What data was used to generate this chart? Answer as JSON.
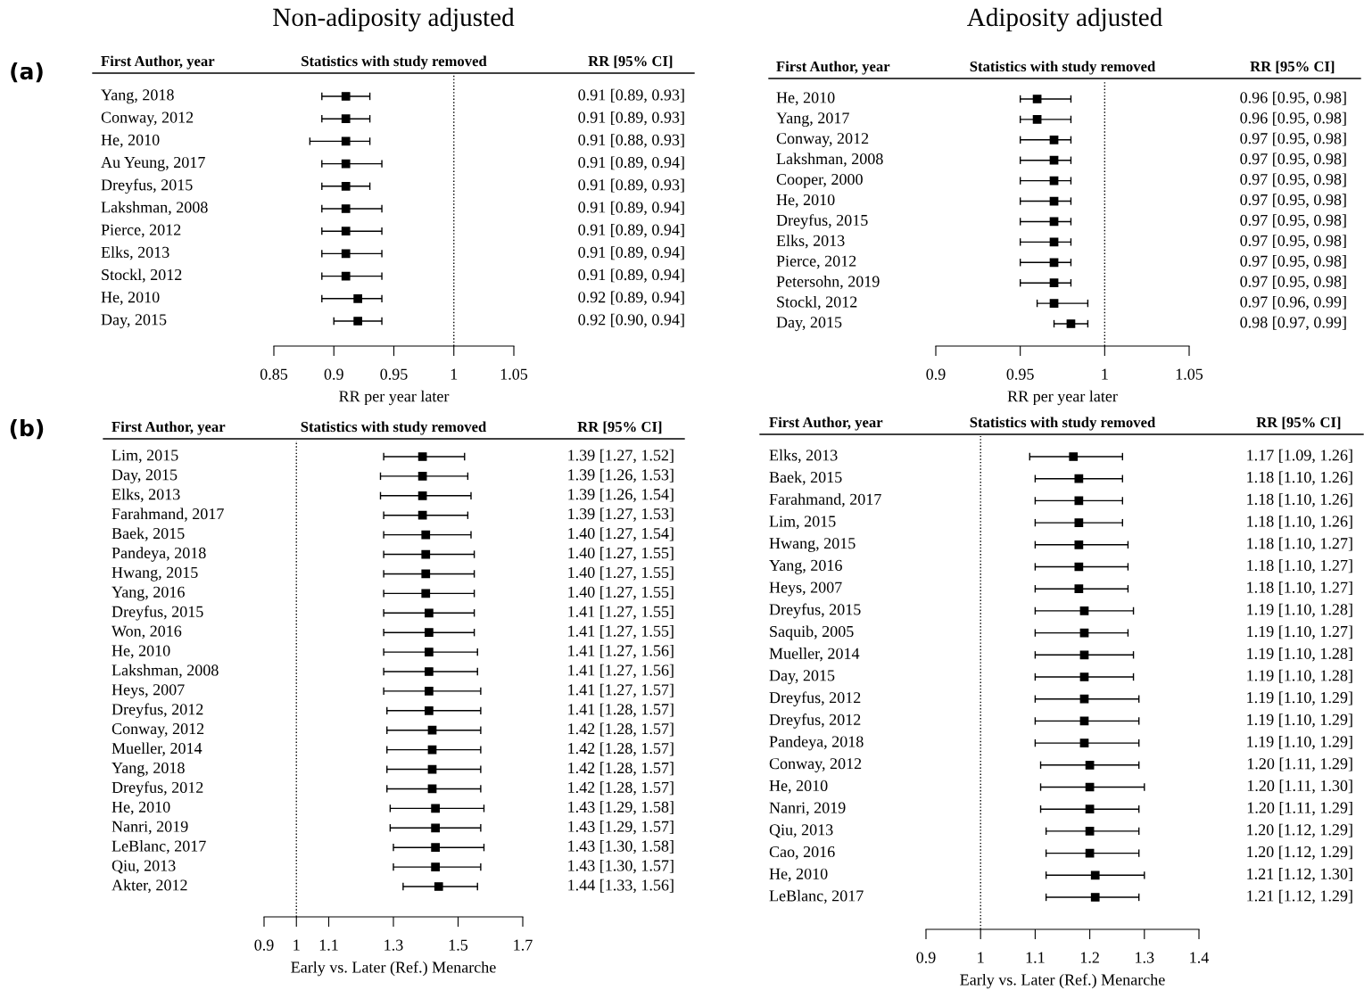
{
  "chart_data": [
    {
      "type": "scatter",
      "orientation": "horizontal",
      "title": "Non-adiposity adjusted",
      "xlabel": "RR per year later",
      "marker": "square",
      "annotations": [
        "First Author, year",
        "Statistics with study removed",
        "RR [95% CI]",
        "(a)"
      ],
      "categories": [
        "Yang, 2018",
        "Conway, 2012",
        "He, 2010",
        "Au Yeung, 2017",
        "Dreyfus, 2015",
        "Lakshman, 2008",
        "Pierce, 2012",
        "Elks, 2013",
        "Stockl, 2012",
        "He, 2010",
        "Day, 2015"
      ],
      "values": [
        0.91,
        0.91,
        0.91,
        0.91,
        0.91,
        0.91,
        0.91,
        0.91,
        0.91,
        0.92,
        0.92
      ],
      "errors": [
        [
          0.89,
          0.93
        ],
        [
          0.89,
          0.93
        ],
        [
          0.88,
          0.93
        ],
        [
          0.89,
          0.94
        ],
        [
          0.89,
          0.93
        ],
        [
          0.89,
          0.94
        ],
        [
          0.89,
          0.94
        ],
        [
          0.89,
          0.94
        ],
        [
          0.89,
          0.94
        ],
        [
          0.89,
          0.94
        ],
        [
          0.9,
          0.94
        ]
      ],
      "value_labels": [
        "0.91 [0.89, 0.93]",
        "0.91 [0.89, 0.93]",
        "0.91 [0.88, 0.93]",
        "0.91 [0.89, 0.94]",
        "0.91 [0.89, 0.93]",
        "0.91 [0.89, 0.94]",
        "0.91 [0.89, 0.94]",
        "0.91 [0.89, 0.94]",
        "0.91 [0.89, 0.94]",
        "0.92 [0.89, 0.94]",
        "0.92 [0.90, 0.94]"
      ],
      "color": "#000000",
      "xlim": [
        0.85,
        1.05
      ],
      "xticks": [
        0.85,
        0.9,
        0.95,
        1,
        1.05
      ],
      "ref_lines": [
        {
          "axis": "x",
          "value": 1,
          "line_style": "dotted"
        }
      ]
    },
    {
      "type": "scatter",
      "orientation": "horizontal",
      "title": "Adiposity adjusted",
      "xlabel": "RR per year later",
      "marker": "square",
      "annotations": [
        "First Author, year",
        "Statistics with study removed",
        "RR [95% CI]"
      ],
      "categories": [
        "He, 2010",
        "Yang, 2017",
        "Conway, 2012",
        "Lakshman, 2008",
        "Cooper, 2000",
        "He, 2010",
        "Dreyfus, 2015",
        "Elks, 2013",
        "Pierce, 2012",
        "Petersohn, 2019",
        "Stockl, 2012",
        "Day, 2015"
      ],
      "values": [
        0.96,
        0.96,
        0.97,
        0.97,
        0.97,
        0.97,
        0.97,
        0.97,
        0.97,
        0.97,
        0.97,
        0.98
      ],
      "errors": [
        [
          0.95,
          0.98
        ],
        [
          0.95,
          0.98
        ],
        [
          0.95,
          0.98
        ],
        [
          0.95,
          0.98
        ],
        [
          0.95,
          0.98
        ],
        [
          0.95,
          0.98
        ],
        [
          0.95,
          0.98
        ],
        [
          0.95,
          0.98
        ],
        [
          0.95,
          0.98
        ],
        [
          0.95,
          0.98
        ],
        [
          0.96,
          0.99
        ],
        [
          0.97,
          0.99
        ]
      ],
      "value_labels": [
        "0.96 [0.95, 0.98]",
        "0.96 [0.95, 0.98]",
        "0.97 [0.95, 0.98]",
        "0.97 [0.95, 0.98]",
        "0.97 [0.95, 0.98]",
        "0.97 [0.95, 0.98]",
        "0.97 [0.95, 0.98]",
        "0.97 [0.95, 0.98]",
        "0.97 [0.95, 0.98]",
        "0.97 [0.95, 0.98]",
        "0.97 [0.96, 0.99]",
        "0.98 [0.97, 0.99]"
      ],
      "color": "#000000",
      "xlim": [
        0.9,
        1.05
      ],
      "xticks": [
        0.9,
        0.95,
        1,
        1.05
      ],
      "ref_lines": [
        {
          "axis": "x",
          "value": 1,
          "line_style": "dotted"
        }
      ]
    },
    {
      "type": "scatter",
      "orientation": "horizontal",
      "xlabel": "Early vs. Later (Ref.) Menarche",
      "marker": "square",
      "annotations": [
        "First Author, year",
        "Statistics with study removed",
        "RR [95% CI]",
        "(b)"
      ],
      "categories": [
        "Lim, 2015",
        "Day, 2015",
        "Elks, 2013",
        "Farahmand, 2017",
        "Baek, 2015",
        "Pandeya, 2018",
        "Hwang, 2015",
        "Yang, 2016",
        "Dreyfus, 2015",
        "Won, 2016",
        "He, 2010",
        "Lakshman, 2008",
        "Heys, 2007",
        "Dreyfus, 2012",
        "Conway, 2012",
        "Mueller, 2014",
        "Yang, 2018",
        "Dreyfus, 2012",
        "He, 2010",
        "Nanri, 2019",
        "LeBlanc, 2017",
        "Qiu, 2013",
        "Akter, 2012"
      ],
      "values": [
        1.39,
        1.39,
        1.39,
        1.39,
        1.4,
        1.4,
        1.4,
        1.4,
        1.41,
        1.41,
        1.41,
        1.41,
        1.41,
        1.41,
        1.42,
        1.42,
        1.42,
        1.42,
        1.43,
        1.43,
        1.43,
        1.43,
        1.44
      ],
      "errors": [
        [
          1.27,
          1.52
        ],
        [
          1.26,
          1.53
        ],
        [
          1.26,
          1.54
        ],
        [
          1.27,
          1.53
        ],
        [
          1.27,
          1.54
        ],
        [
          1.27,
          1.55
        ],
        [
          1.27,
          1.55
        ],
        [
          1.27,
          1.55
        ],
        [
          1.27,
          1.55
        ],
        [
          1.27,
          1.55
        ],
        [
          1.27,
          1.56
        ],
        [
          1.27,
          1.56
        ],
        [
          1.27,
          1.57
        ],
        [
          1.28,
          1.57
        ],
        [
          1.28,
          1.57
        ],
        [
          1.28,
          1.57
        ],
        [
          1.28,
          1.57
        ],
        [
          1.28,
          1.57
        ],
        [
          1.29,
          1.58
        ],
        [
          1.29,
          1.57
        ],
        [
          1.3,
          1.58
        ],
        [
          1.3,
          1.57
        ],
        [
          1.33,
          1.56
        ]
      ],
      "value_labels": [
        "1.39 [1.27, 1.52]",
        "1.39 [1.26, 1.53]",
        "1.39 [1.26, 1.54]",
        "1.39 [1.27, 1.53]",
        "1.40 [1.27, 1.54]",
        "1.40 [1.27, 1.55]",
        "1.40 [1.27, 1.55]",
        "1.40 [1.27, 1.55]",
        "1.41 [1.27, 1.55]",
        "1.41 [1.27, 1.55]",
        "1.41 [1.27, 1.56]",
        "1.41 [1.27, 1.56]",
        "1.41 [1.27, 1.57]",
        "1.41 [1.28, 1.57]",
        "1.42 [1.28, 1.57]",
        "1.42 [1.28, 1.57]",
        "1.42 [1.28, 1.57]",
        "1.42 [1.28, 1.57]",
        "1.43 [1.29, 1.58]",
        "1.43 [1.29, 1.57]",
        "1.43 [1.30, 1.58]",
        "1.43 [1.30, 1.57]",
        "1.44 [1.33, 1.56]"
      ],
      "color": "#000000",
      "xlim": [
        0.9,
        1.7
      ],
      "xticks": [
        0.9,
        1,
        1.1,
        1.3,
        1.5,
        1.7
      ],
      "ref_lines": [
        {
          "axis": "x",
          "value": 1,
          "line_style": "dotted"
        }
      ]
    },
    {
      "type": "scatter",
      "orientation": "horizontal",
      "xlabel": "Early vs. Later (Ref.) Menarche",
      "marker": "square",
      "annotations": [
        "First Author, year",
        "Statistics with study removed",
        "RR [95% CI]"
      ],
      "categories": [
        "Elks, 2013",
        "Baek, 2015",
        "Farahmand, 2017",
        "Lim, 2015",
        "Hwang, 2015",
        "Yang, 2016",
        "Heys, 2007",
        "Dreyfus, 2015",
        "Saquib, 2005",
        "Mueller, 2014",
        "Day, 2015",
        "Dreyfus, 2012",
        "Dreyfus, 2012",
        "Pandeya, 2018",
        "Conway, 2012",
        "He, 2010",
        "Nanri, 2019",
        "Qiu, 2013",
        "Cao, 2016",
        "He, 2010",
        "LeBlanc, 2017"
      ],
      "values": [
        1.17,
        1.18,
        1.18,
        1.18,
        1.18,
        1.18,
        1.18,
        1.19,
        1.19,
        1.19,
        1.19,
        1.19,
        1.19,
        1.19,
        1.2,
        1.2,
        1.2,
        1.2,
        1.2,
        1.21,
        1.21
      ],
      "errors": [
        [
          1.09,
          1.26
        ],
        [
          1.1,
          1.26
        ],
        [
          1.1,
          1.26
        ],
        [
          1.1,
          1.26
        ],
        [
          1.1,
          1.27
        ],
        [
          1.1,
          1.27
        ],
        [
          1.1,
          1.27
        ],
        [
          1.1,
          1.28
        ],
        [
          1.1,
          1.27
        ],
        [
          1.1,
          1.28
        ],
        [
          1.1,
          1.28
        ],
        [
          1.1,
          1.29
        ],
        [
          1.1,
          1.29
        ],
        [
          1.1,
          1.29
        ],
        [
          1.11,
          1.29
        ],
        [
          1.11,
          1.3
        ],
        [
          1.11,
          1.29
        ],
        [
          1.12,
          1.29
        ],
        [
          1.12,
          1.29
        ],
        [
          1.12,
          1.3
        ],
        [
          1.12,
          1.29
        ]
      ],
      "value_labels": [
        "1.17 [1.09, 1.26]",
        "1.18 [1.10, 1.26]",
        "1.18 [1.10, 1.26]",
        "1.18 [1.10, 1.26]",
        "1.18 [1.10, 1.27]",
        "1.18 [1.10, 1.27]",
        "1.18 [1.10, 1.27]",
        "1.19 [1.10, 1.28]",
        "1.19 [1.10, 1.27]",
        "1.19 [1.10, 1.28]",
        "1.19 [1.10, 1.28]",
        "1.19 [1.10, 1.29]",
        "1.19 [1.10, 1.29]",
        "1.19 [1.10, 1.29]",
        "1.20 [1.11, 1.29]",
        "1.20 [1.11, 1.30]",
        "1.20 [1.11, 1.29]",
        "1.20 [1.12, 1.29]",
        "1.20 [1.12, 1.29]",
        "1.21 [1.12, 1.30]",
        "1.21 [1.12, 1.29]"
      ],
      "color": "#000000",
      "xlim": [
        0.9,
        1.4
      ],
      "xticks": [
        0.9,
        1,
        1.1,
        1.2,
        1.3,
        1.4
      ],
      "ref_lines": [
        {
          "axis": "x",
          "value": 1,
          "line_style": "dotted"
        }
      ]
    }
  ]
}
